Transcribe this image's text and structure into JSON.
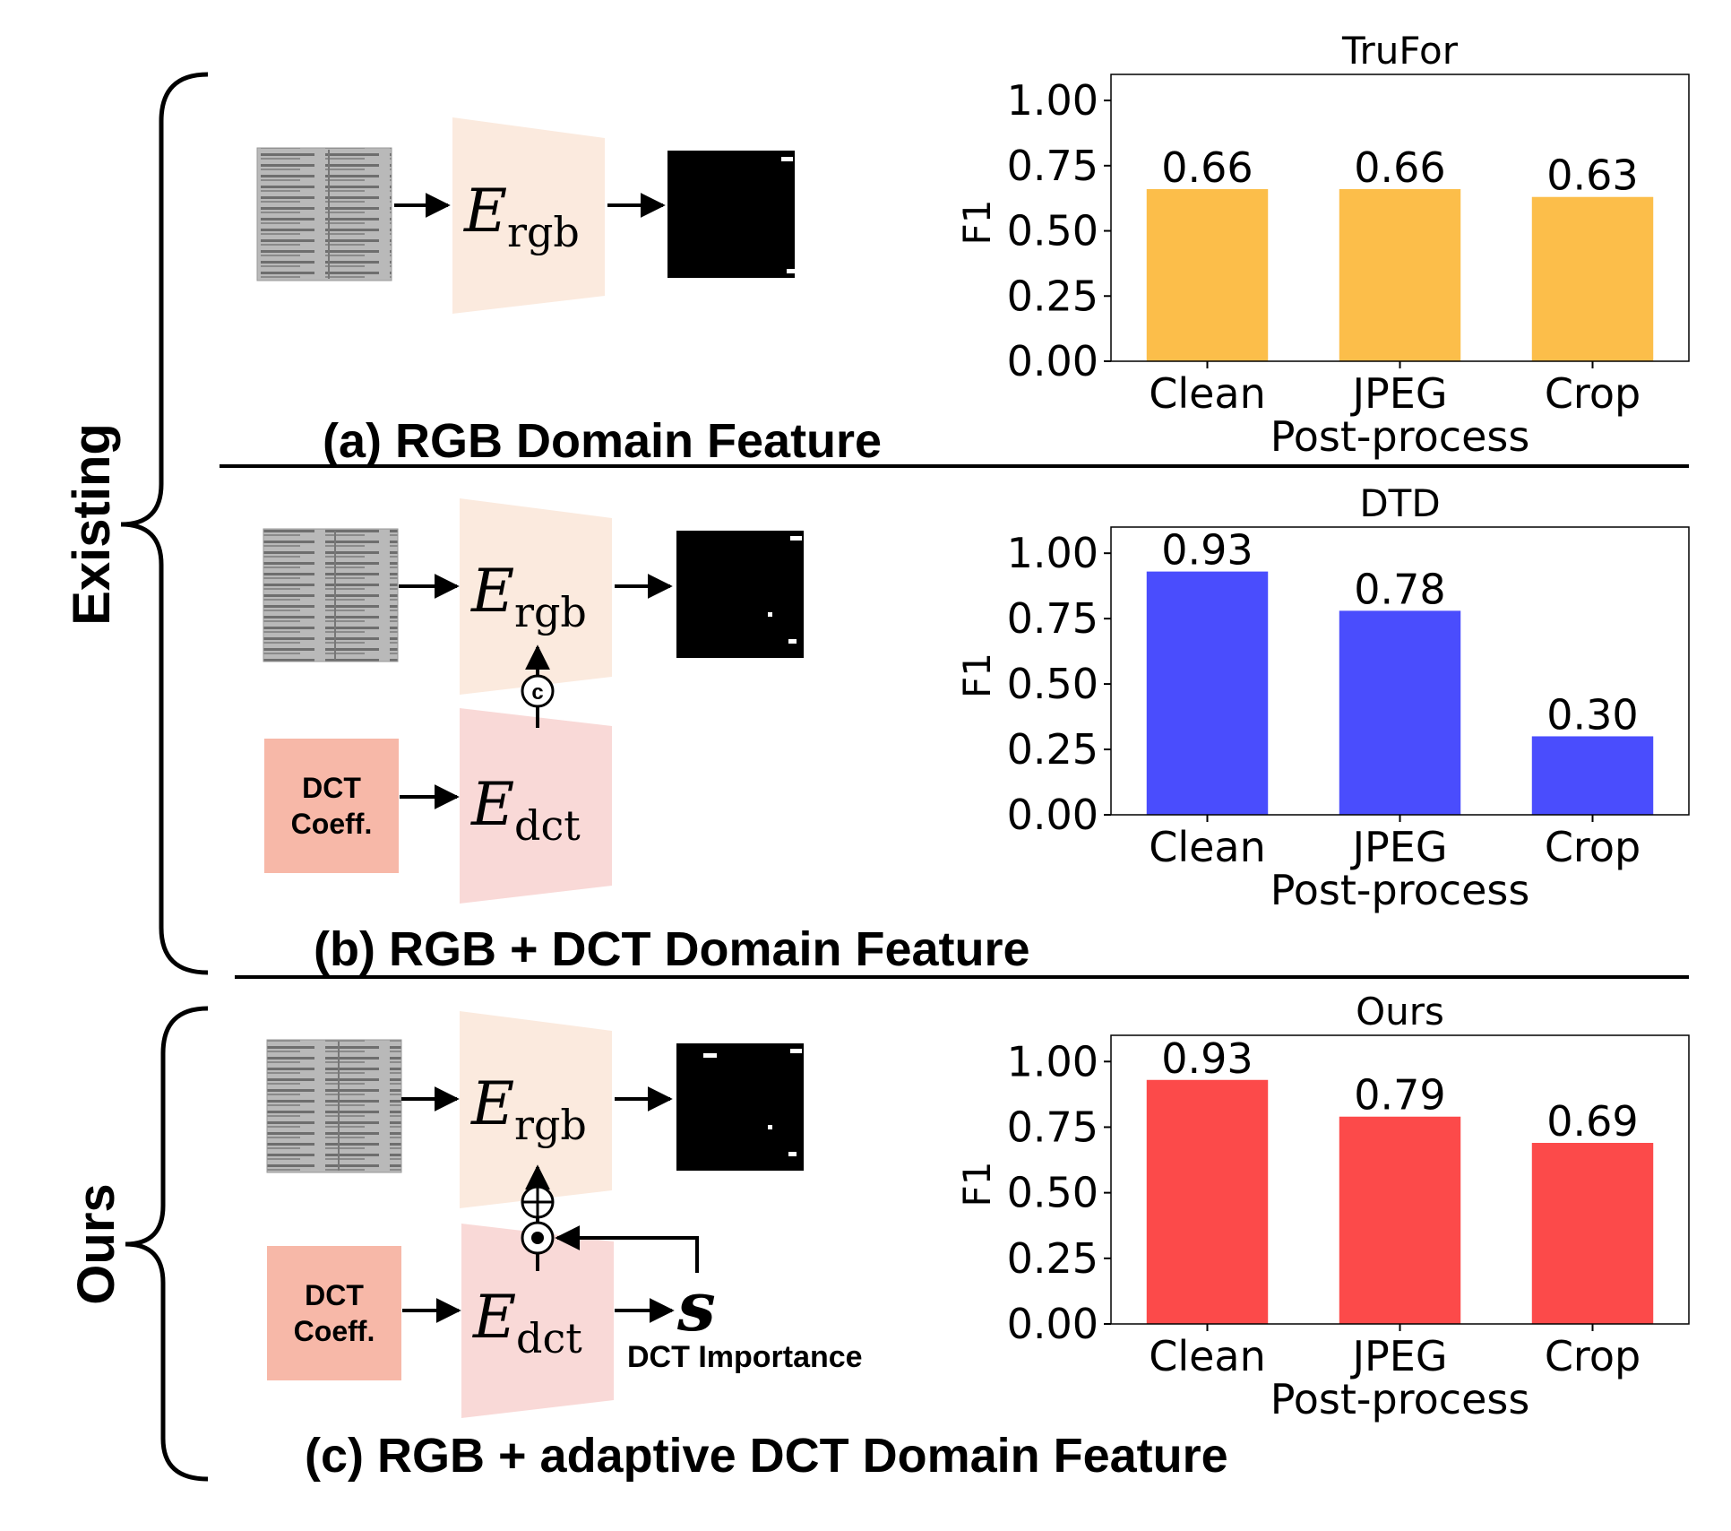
{
  "brackets": {
    "existing": "Existing",
    "ours": "Ours"
  },
  "panels": [
    {
      "caption": "(a) RGB Domain Feature",
      "encoders": [
        {
          "symbol": "E",
          "subscript": "rgb"
        }
      ]
    },
    {
      "caption": "(b) RGB + DCT Domain Feature",
      "encoders": [
        {
          "symbol": "E",
          "subscript": "rgb"
        },
        {
          "symbol": "E",
          "subscript": "dct"
        }
      ],
      "input_box": "DCT\nCoeff.",
      "fusion_symbol": "c"
    },
    {
      "caption": "(c) RGB + adaptive DCT Domain Feature",
      "encoders": [
        {
          "symbol": "E",
          "subscript": "rgb"
        },
        {
          "symbol": "E",
          "subscript": "dct"
        }
      ],
      "input_box": "DCT\nCoeff.",
      "fusion_add": "⊕",
      "fusion_mul": "⊙",
      "importance_symbol": "s",
      "importance_label": "DCT Importance"
    }
  ],
  "colors": {
    "rgb_encoder": "#fbeade",
    "dct_encoder": "#f9d9d7",
    "dct_box": "#f7b8a8",
    "trufor": "#fcbe4a",
    "dtd": "#4a4dfd",
    "ours": "#fc4a4a"
  },
  "chart_data": [
    {
      "type": "bar",
      "title": "TruFor",
      "categories": [
        "Clean",
        "JPEG",
        "Crop"
      ],
      "values": [
        0.66,
        0.66,
        0.63
      ],
      "value_labels": [
        "0.66",
        "0.66",
        "0.63"
      ],
      "xlabel": "Post-process",
      "ylabel": "F1",
      "ylim": [
        0,
        1.1
      ],
      "yticks": [
        "0.00",
        "0.25",
        "0.50",
        "0.75",
        "1.00"
      ],
      "grid": false
    },
    {
      "type": "bar",
      "title": "DTD",
      "categories": [
        "Clean",
        "JPEG",
        "Crop"
      ],
      "values": [
        0.93,
        0.78,
        0.3
      ],
      "value_labels": [
        "0.93",
        "0.78",
        "0.30"
      ],
      "xlabel": "Post-process",
      "ylabel": "F1",
      "ylim": [
        0,
        1.1
      ],
      "yticks": [
        "0.00",
        "0.25",
        "0.50",
        "0.75",
        "1.00"
      ],
      "grid": false
    },
    {
      "type": "bar",
      "title": "Ours",
      "categories": [
        "Clean",
        "JPEG",
        "Crop"
      ],
      "values": [
        0.93,
        0.79,
        0.69
      ],
      "value_labels": [
        "0.93",
        "0.79",
        "0.69"
      ],
      "xlabel": "Post-process",
      "ylabel": "F1",
      "ylim": [
        0,
        1.1
      ],
      "yticks": [
        "0.00",
        "0.25",
        "0.50",
        "0.75",
        "1.00"
      ],
      "grid": false
    }
  ]
}
